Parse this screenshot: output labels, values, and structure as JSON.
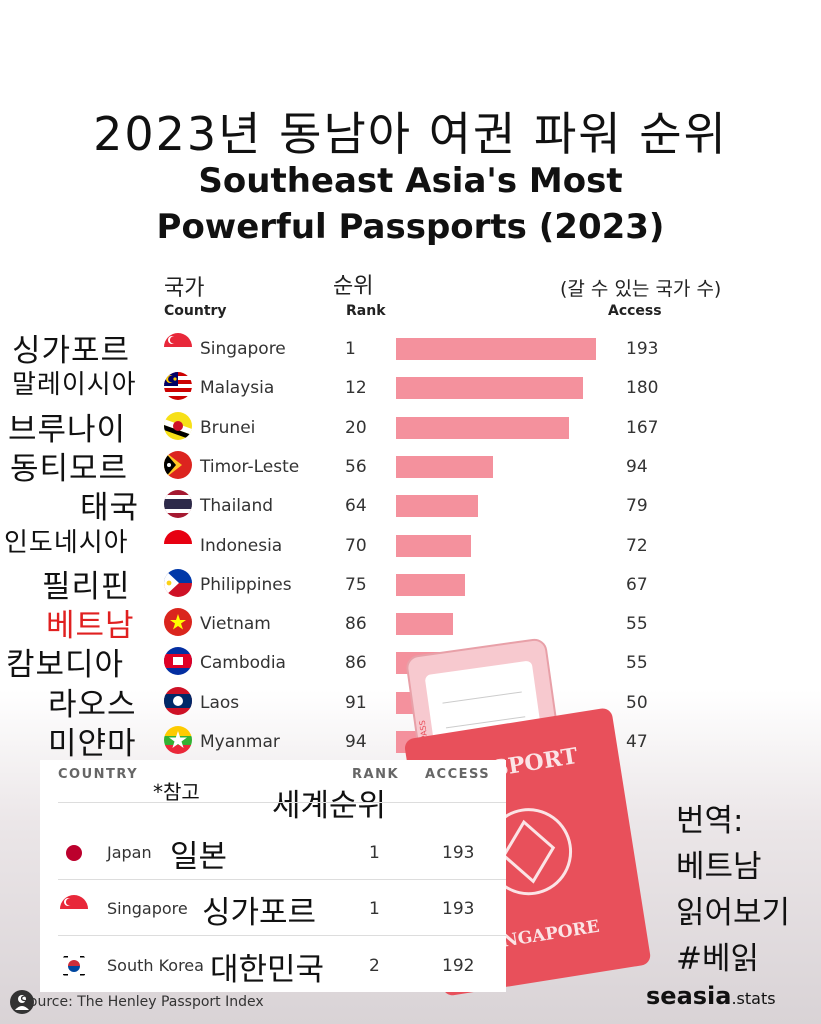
{
  "title_ko": "2023년 동남아 여권 파워 순위",
  "title_en_line1": "Southeast Asia's Most",
  "title_en_line2": "Powerful Passports (2023)",
  "headers": {
    "country_ko": "국가",
    "country_en": "Country",
    "rank_ko": "순위",
    "rank_en": "Rank",
    "access_ko": "(갈 수 있는 국가 수)",
    "access_en": "Access"
  },
  "chart_data": {
    "type": "bar",
    "orientation": "horizontal",
    "categories": [
      "Singapore",
      "Malaysia",
      "Brunei",
      "Timor-Leste",
      "Thailand",
      "Indonesia",
      "Philippines",
      "Vietnam",
      "Cambodia",
      "Laos",
      "Myanmar"
    ],
    "categories_ko": [
      "싱가포르",
      "말레이시아",
      "브루나이",
      "동티모르",
      "태국",
      "인도네시아",
      "필리핀",
      "베트남",
      "캄보디아",
      "라오스",
      "미얀마"
    ],
    "rank": [
      1,
      12,
      20,
      56,
      64,
      70,
      75,
      86,
      86,
      91,
      94
    ],
    "values": [
      193,
      180,
      167,
      94,
      79,
      72,
      67,
      55,
      55,
      50,
      47
    ],
    "bar_color": "#f4919d",
    "highlight_ko_color": "#e02020",
    "highlight_index": 7,
    "xlim": [
      0,
      193
    ]
  },
  "reference": {
    "header_country": "COUNTRY",
    "header_rank": "RANK",
    "header_access": "ACCESS",
    "note": "*참고",
    "world_rank": "세계순위",
    "rows": [
      {
        "name": "Japan",
        "ko": "일본",
        "rank": "1",
        "access": "193"
      },
      {
        "name": "Singapore",
        "ko": "싱가포르",
        "rank": "1",
        "access": "193"
      },
      {
        "name": "South Korea",
        "ko": "대한민국",
        "rank": "2",
        "access": "192"
      }
    ]
  },
  "translator": {
    "line1": "번역:",
    "line2": "베트남",
    "line3": "읽어보기",
    "line4": "#베읽"
  },
  "source": "Source: The Henley Passport Index",
  "brand_main": "seasia",
  "brand_suffix": ".stats",
  "passport": {
    "word": "PASSPORT",
    "country": "SINGAPORE",
    "ticket": "BOARDING PASS",
    "cover_color": "#e8505b",
    "ticket_color": "#f7c9cf"
  }
}
